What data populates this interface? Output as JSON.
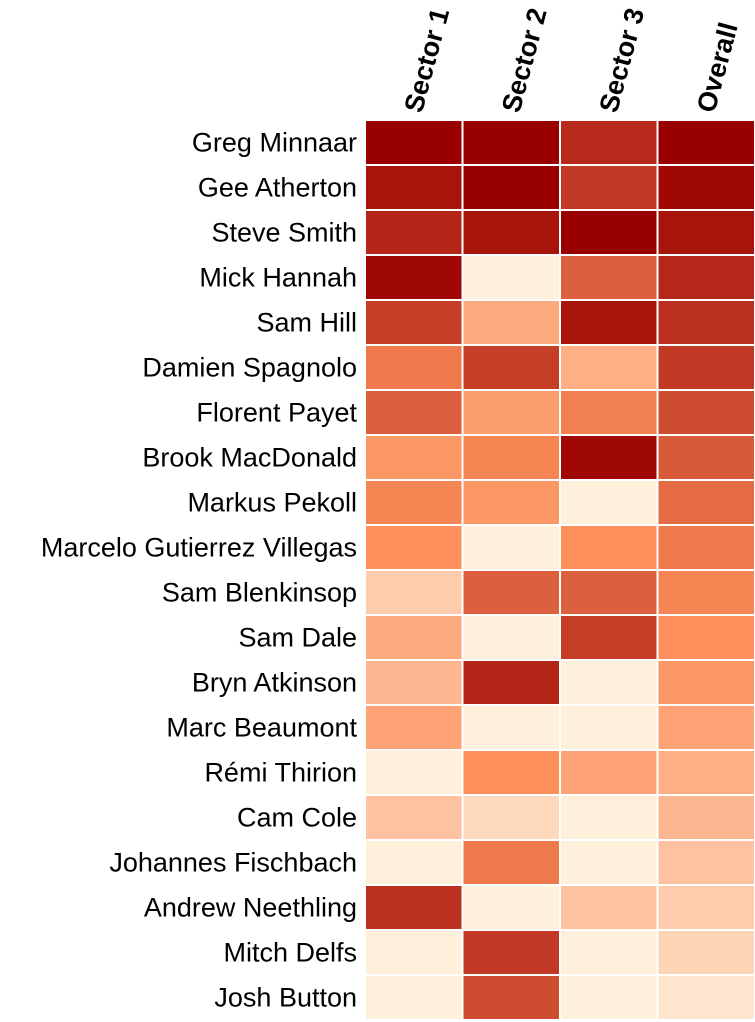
{
  "chart_data": {
    "type": "heatmap",
    "columns": [
      "Sector 1",
      "Sector 2",
      "Sector 3",
      "Overall"
    ],
    "rows": [
      "Greg Minnaar",
      "Gee Atherton",
      "Steve Smith",
      "Mick Hannah",
      "Sam Hill",
      "Damien Spagnolo",
      "Florent Payet",
      "Brook MacDonald",
      "Markus Pekoll",
      "Marcelo Gutierrez Villegas",
      "Sam Blenkinsop",
      "Sam Dale",
      "Bryn Atkinson",
      "Marc Beaumont",
      "Rémi Thirion",
      "Cam Cole",
      "Johannes Fischbach",
      "Andrew Neethling",
      "Mitch Delfs",
      "Josh Button"
    ],
    "values": [
      [
        1.0,
        1.0,
        0.85,
        1.0
      ],
      [
        0.93,
        1.0,
        0.8,
        0.97
      ],
      [
        0.87,
        0.93,
        1.0,
        0.93
      ],
      [
        0.97,
        0.0,
        0.66,
        0.86
      ],
      [
        0.78,
        0.36,
        0.93,
        0.83
      ],
      [
        0.57,
        0.78,
        0.33,
        0.8
      ],
      [
        0.66,
        0.42,
        0.55,
        0.73
      ],
      [
        0.45,
        0.53,
        0.97,
        0.68
      ],
      [
        0.53,
        0.45,
        0.0,
        0.62
      ],
      [
        0.49,
        0.0,
        0.49,
        0.57
      ],
      [
        0.18,
        0.66,
        0.66,
        0.53
      ],
      [
        0.36,
        0.0,
        0.78,
        0.49
      ],
      [
        0.29,
        0.87,
        0.0,
        0.45
      ],
      [
        0.39,
        0.0,
        0.0,
        0.39
      ],
      [
        0.0,
        0.49,
        0.39,
        0.33
      ],
      [
        0.23,
        0.12,
        0.0,
        0.29
      ],
      [
        0.0,
        0.57,
        0.0,
        0.23
      ],
      [
        0.83,
        0.0,
        0.23,
        0.18
      ],
      [
        0.0,
        0.8,
        0.0,
        0.14
      ],
      [
        0.0,
        0.73,
        0.0,
        0.05
      ]
    ],
    "colors": {
      "low": "#fff0dc",
      "mid": "#fc8d59",
      "high": "#990000",
      "cell_border": "#ffffff"
    }
  }
}
